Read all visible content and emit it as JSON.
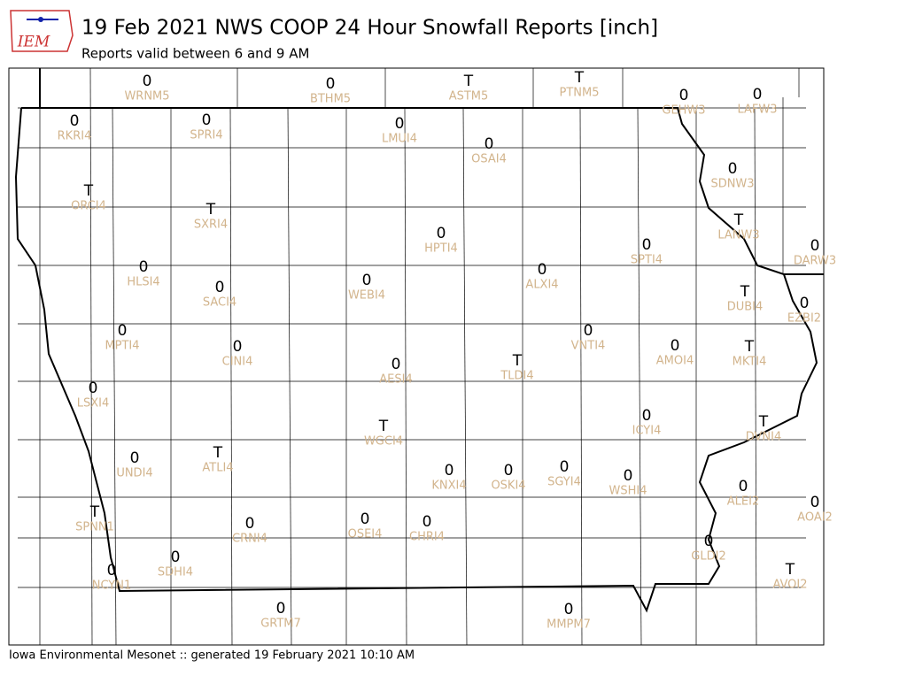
{
  "header": {
    "logo": "IEM",
    "title": "19 Feb 2021 NWS COOP 24 Hour Snowfall Reports [inch]",
    "subtitle": "Reports valid between 6 and 9 AM"
  },
  "footer": "Iowa Environmental Mesonet :: generated 19 February 2021 10:10 AM",
  "stations": [
    {
      "id": "WRNM5",
      "value": 0
    },
    {
      "id": "BTHM5",
      "value": 0
    },
    {
      "id": "ASTM5",
      "value": "T"
    },
    {
      "id": "PTNM5",
      "value": "T"
    },
    {
      "id": "GEHW3",
      "value": 0
    },
    {
      "id": "LAFW3",
      "value": 0
    },
    {
      "id": "RKRI4",
      "value": 0
    },
    {
      "id": "SPRI4",
      "value": 0
    },
    {
      "id": "LMUI4",
      "value": 0
    },
    {
      "id": "OSAI4",
      "value": 0
    },
    {
      "id": "SDNW3",
      "value": 0
    },
    {
      "id": "ORCI4",
      "value": "T"
    },
    {
      "id": "SXRI4",
      "value": "T"
    },
    {
      "id": "LANW3",
      "value": "T"
    },
    {
      "id": "HPTI4",
      "value": 0
    },
    {
      "id": "SPTI4",
      "value": 0
    },
    {
      "id": "DARW3",
      "value": 0
    },
    {
      "id": "HLSI4",
      "value": 0
    },
    {
      "id": "ALXI4",
      "value": 0
    },
    {
      "id": "WEBI4",
      "value": 0
    },
    {
      "id": "SACI4",
      "value": 0
    },
    {
      "id": "DUBI4",
      "value": "T"
    },
    {
      "id": "EZBI2",
      "value": 0
    },
    {
      "id": "MPTI4",
      "value": 0
    },
    {
      "id": "VNTI4",
      "value": 0
    },
    {
      "id": "AMOI4",
      "value": 0
    },
    {
      "id": "CINI4",
      "value": 0
    },
    {
      "id": "MKTI4",
      "value": "T"
    },
    {
      "id": "TLDI4",
      "value": "T"
    },
    {
      "id": "AESI4",
      "value": 0
    },
    {
      "id": "LSXI4",
      "value": 0
    },
    {
      "id": "ICYI4",
      "value": 0
    },
    {
      "id": "DVNI4",
      "value": "T"
    },
    {
      "id": "WGCI4",
      "value": "T"
    },
    {
      "id": "UNDI4",
      "value": 0
    },
    {
      "id": "ATLI4",
      "value": "T"
    },
    {
      "id": "KNXI4",
      "value": 0
    },
    {
      "id": "OSKI4",
      "value": 0
    },
    {
      "id": "SGYI4",
      "value": 0
    },
    {
      "id": "WSHI4",
      "value": 0
    },
    {
      "id": "ALEI2",
      "value": 0
    },
    {
      "id": "AOAI2",
      "value": 0
    },
    {
      "id": "SPNN1",
      "value": "T"
    },
    {
      "id": "CRNI4",
      "value": 0
    },
    {
      "id": "OSEI4",
      "value": 0
    },
    {
      "id": "CHRI4",
      "value": 0
    },
    {
      "id": "GLDI2",
      "value": 0
    },
    {
      "id": "AVOI2",
      "value": "T"
    },
    {
      "id": "NCYN1",
      "value": 0
    },
    {
      "id": "SDHI4",
      "value": 0
    },
    {
      "id": "GRTM7",
      "value": 0
    },
    {
      "id": "MMPM7",
      "value": 0
    }
  ]
}
